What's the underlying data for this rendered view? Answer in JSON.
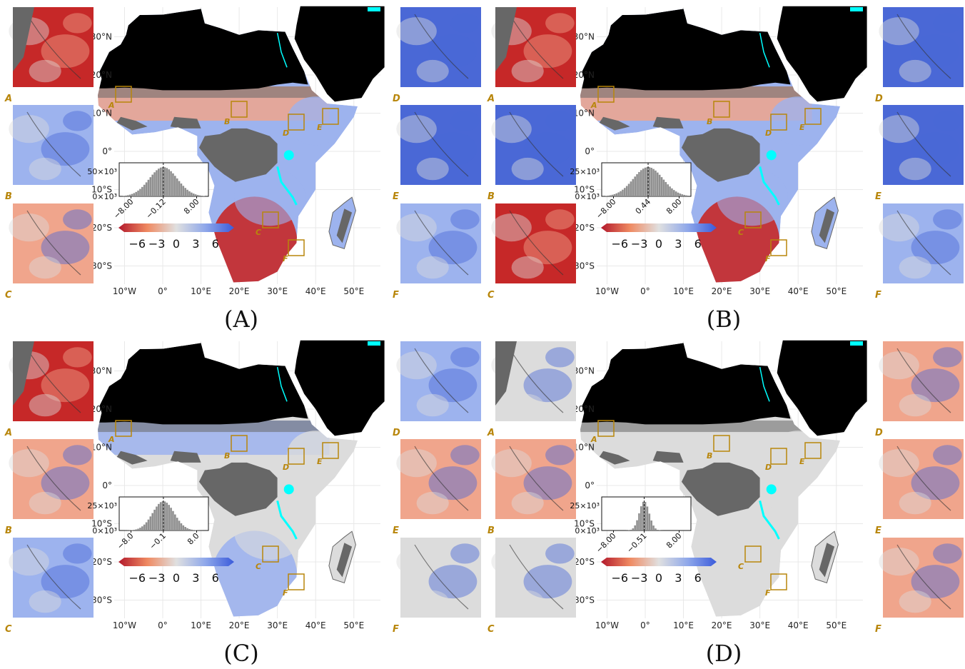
{
  "colors": {
    "red": "#c62828",
    "salmon": "#f0a58c",
    "neutral": "#dcdcdc",
    "lightblue": "#9db3ee",
    "blue": "#4a68d6",
    "masked": "#676767",
    "black": "#000000",
    "water": "#00ffff",
    "box": "#b8860b"
  },
  "axes": {
    "lat_labels": [
      "30°N",
      "20°N",
      "10°N",
      "0°",
      "10°S",
      "20°S",
      "30°S"
    ],
    "lon_labels": [
      "10°W",
      "0°",
      "10°E",
      "20°E",
      "30°E",
      "40°E",
      "50°E"
    ]
  },
  "regions": [
    "A",
    "B",
    "C",
    "D",
    "E",
    "F"
  ],
  "colorbar": {
    "ticks": [
      "−6",
      "−3",
      "0",
      "3",
      "6"
    ],
    "range": [
      -8,
      8
    ]
  },
  "panels": [
    {
      "id": "A",
      "caption": "(A)",
      "hist": {
        "ymax_label": "50×10³",
        "ymin_label": "0×10³",
        "ticks": [
          "−8.00",
          "−0.12",
          "8.00"
        ],
        "median": -0.12,
        "spread": 3.4
      },
      "insets": {
        "A": "red",
        "B": "lightblue",
        "C": "salmon",
        "D": "blue",
        "E": "blue",
        "F": "lightblue"
      },
      "map": {
        "north_band": "salmon",
        "south": "red",
        "east": "lightblue"
      }
    },
    {
      "id": "B",
      "caption": "(B)",
      "hist": {
        "ymax_label": "25×10³",
        "ymin_label": "0×10³",
        "ticks": [
          "−8.00",
          "0.44",
          "8.00"
        ],
        "median": 0.44,
        "spread": 3.6
      },
      "insets": {
        "A": "red",
        "B": "blue",
        "C": "red",
        "D": "blue",
        "E": "blue",
        "F": "lightblue"
      },
      "map": {
        "north_band": "salmon",
        "south": "red",
        "east": "lightblue"
      }
    },
    {
      "id": "C",
      "caption": "(C)",
      "hist": {
        "ymax_label": "25×10³",
        "ymin_label": "0×10³",
        "ticks": [
          "−8.0",
          "−0.1",
          "8.0"
        ],
        "median": -0.1,
        "spread": 2.6
      },
      "insets": {
        "A": "red",
        "B": "salmon",
        "C": "lightblue",
        "D": "lightblue",
        "E": "salmon",
        "F": "neutral"
      },
      "map": {
        "north_band": "lightblue",
        "south": "lightblue",
        "east": "neutral"
      }
    },
    {
      "id": "D",
      "caption": "(D)",
      "hist": {
        "ymax_label": "25×10³",
        "ymin_label": "0×10³",
        "ticks": [
          "−8.00",
          "−0.51",
          "8.00"
        ],
        "median": -0.51,
        "spread": 1.2
      },
      "insets": {
        "A": "neutral",
        "B": "salmon",
        "C": "neutral",
        "D": "salmon",
        "E": "salmon",
        "F": "salmon"
      },
      "map": {
        "north_band": "neutral",
        "south": "neutral",
        "east": "neutral"
      }
    }
  ]
}
